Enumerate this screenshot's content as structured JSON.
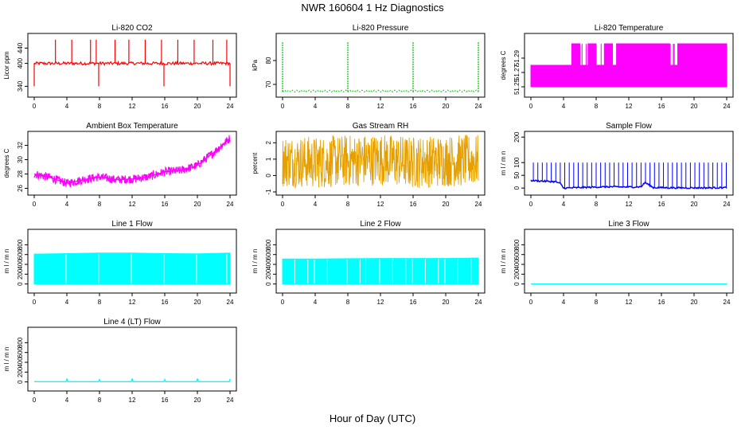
{
  "figure": {
    "title": "NWR  160604  1 Hz Diagnostics",
    "xlabel": "Hour of Day (UTC)"
  },
  "chart_data": [
    {
      "type": "line",
      "title": "Li-820 CO2",
      "ylabel": "Licor ppm",
      "color": "#ff0000",
      "xlim": [
        0,
        24
      ],
      "ylim": [
        320,
        470
      ],
      "xticks": [
        "0",
        "4",
        "8",
        "12",
        "16",
        "20",
        "24"
      ],
      "yticks": [
        {
          "v": 340,
          "label": "340"
        },
        {
          "v": 400,
          "label": "400"
        },
        {
          "v": 440,
          "label": "440"
        }
      ],
      "baseline": 400,
      "series": {
        "x": [
          0,
          0.3,
          1.6,
          2.6,
          3.9,
          4.6,
          5.6,
          6.9,
          7.6,
          7.9,
          8.6,
          9.9,
          10.6,
          11.6,
          12.9,
          13.6,
          14.6,
          15.6,
          15.9,
          16.6,
          17.6,
          18.9,
          19.6,
          20.6,
          21.9,
          22.6,
          23.6,
          24
        ],
        "y": [
          340,
          398,
          400,
          462,
          401,
          462,
          400,
          462,
          462,
          340,
          400,
          462,
          401,
          462,
          401,
          462,
          400,
          462,
          340,
          400,
          462,
          400,
          462,
          400,
          462,
          400,
          462,
          340
        ]
      }
    },
    {
      "type": "line",
      "title": "Li-820 Pressure",
      "ylabel": "kPa",
      "color": "#00cc00",
      "xlim": [
        0,
        24
      ],
      "ylim": [
        66,
        90
      ],
      "xticks": [
        "0",
        "4",
        "8",
        "12",
        "16",
        "20",
        "24"
      ],
      "yticks": [
        {
          "v": 70,
          "label": "70"
        },
        {
          "v": 80,
          "label": "80"
        }
      ],
      "baseline": 67,
      "series": {
        "x": [
          0,
          8,
          16,
          24
        ],
        "y": [
          88,
          88,
          88,
          88
        ]
      }
    },
    {
      "type": "line",
      "title": "Li-820 Temperature",
      "ylabel": "degrees C",
      "color": "#ff00ff",
      "xlim": [
        0,
        24
      ],
      "ylim": [
        51.24,
        51.32
      ],
      "xticks": [
        "0",
        "4",
        "8",
        "12",
        "16",
        "20",
        "24"
      ],
      "yticks": [
        {
          "v": 51.25,
          "label": "51.25"
        },
        {
          "v": 51.27,
          "label": "51.27"
        },
        {
          "v": 51.29,
          "label": "51.29"
        }
      ],
      "series": {
        "x": [
          0,
          4.5,
          5,
          6,
          7,
          8,
          9,
          10,
          10.5,
          16,
          17,
          18,
          24
        ],
        "y": [
          51.28,
          51.28,
          51.31,
          51.28,
          51.31,
          51.28,
          51.31,
          51.28,
          51.31,
          51.31,
          51.28,
          51.31,
          51.31
        ]
      }
    },
    {
      "type": "line",
      "title": "Ambient Box Temperature",
      "ylabel": "degrees C",
      "color": "#ff00ff",
      "xlim": [
        0,
        24
      ],
      "ylim": [
        25.5,
        33.5
      ],
      "xticks": [
        "0",
        "4",
        "8",
        "12",
        "16",
        "20",
        "24"
      ],
      "yticks": [
        {
          "v": 26,
          "label": "26"
        },
        {
          "v": 28,
          "label": "28"
        },
        {
          "v": 30,
          "label": "30"
        },
        {
          "v": 32,
          "label": "32"
        }
      ],
      "series": {
        "x": [
          0,
          2,
          4,
          6,
          8,
          10,
          12,
          14,
          16,
          18,
          20,
          22,
          24
        ],
        "y": [
          28,
          27.5,
          26.7,
          27.2,
          27.6,
          27.2,
          27.3,
          27.6,
          28.3,
          28.5,
          29.2,
          31,
          33
        ]
      }
    },
    {
      "type": "line",
      "title": "Gas Stream RH",
      "ylabel": "percent",
      "color": "#e5a000",
      "xlim": [
        0,
        24
      ],
      "ylim": [
        -1,
        2.5
      ],
      "xticks": [
        "0",
        "4",
        "8",
        "12",
        "16",
        "20",
        "24"
      ],
      "yticks": [
        {
          "v": -1,
          "label": "-1"
        },
        {
          "v": 0,
          "label": "0"
        },
        {
          "v": 1,
          "label": "1"
        },
        {
          "v": 2,
          "label": "2"
        }
      ],
      "series": {
        "x": [
          0,
          4,
          8,
          12,
          16,
          20,
          24
        ],
        "y": [
          0.9,
          0.8,
          0.9,
          1.0,
          0.8,
          0.9,
          0.9
        ]
      }
    },
    {
      "type": "line",
      "title": "Sample Flow",
      "ylabel": "m l / m n",
      "color": "#0000ff",
      "xlim": [
        0,
        24
      ],
      "ylim": [
        -15,
        210
      ],
      "xticks": [
        "0",
        "4",
        "8",
        "12",
        "16",
        "20",
        "24"
      ],
      "yticks": [
        {
          "v": 0,
          "label": "0"
        },
        {
          "v": 50,
          "label": "50"
        },
        {
          "v": 100,
          "label": "100"
        },
        {
          "v": 200,
          "label": "200"
        }
      ],
      "series": {
        "x": [
          0,
          1,
          3,
          3.6,
          4,
          6,
          8,
          10,
          12,
          13.5,
          14,
          15,
          18,
          22,
          24
        ],
        "y": [
          30,
          28,
          25,
          18,
          0,
          2,
          4,
          5,
          4,
          5,
          22,
          2,
          1,
          1,
          2
        ]
      }
    },
    {
      "type": "line",
      "title": "Line 1 Flow",
      "ylabel": "m l / m n",
      "color": "#00ffff",
      "xlim": [
        0,
        24
      ],
      "ylim": [
        -120,
        1050
      ],
      "xticks": [
        "0",
        "4",
        "8",
        "12",
        "16",
        "20",
        "24"
      ],
      "yticks": [
        {
          "v": 0,
          "label": "0"
        },
        {
          "v": 200,
          "label": "200"
        },
        {
          "v": 400,
          "label": "400"
        },
        {
          "v": 600,
          "label": "600"
        },
        {
          "v": 800,
          "label": "800"
        }
      ],
      "series": {
        "x": [
          0,
          4,
          8,
          12,
          16,
          20,
          24
        ],
        "y": [
          610,
          620,
          630,
          630,
          620,
          615,
          630
        ]
      }
    },
    {
      "type": "line",
      "title": "Line 2 Flow",
      "ylabel": "m l / m n",
      "color": "#00ffff",
      "xlim": [
        0,
        24
      ],
      "ylim": [
        -120,
        1050
      ],
      "xticks": [
        "0",
        "4",
        "8",
        "12",
        "16",
        "20",
        "24"
      ],
      "yticks": [
        {
          "v": 0,
          "label": "0"
        },
        {
          "v": 200,
          "label": "200"
        },
        {
          "v": 400,
          "label": "400"
        },
        {
          "v": 600,
          "label": "600"
        },
        {
          "v": 800,
          "label": "800"
        }
      ],
      "series": {
        "x": [
          0,
          4,
          8,
          12,
          16,
          20,
          24
        ],
        "y": [
          510,
          510,
          515,
          520,
          520,
          520,
          530
        ]
      }
    },
    {
      "type": "line",
      "title": "Line 3 Flow",
      "ylabel": "m l / m n",
      "color": "#00ffff",
      "xlim": [
        0,
        24
      ],
      "ylim": [
        -120,
        1050
      ],
      "xticks": [
        "0",
        "4",
        "8",
        "12",
        "16",
        "20",
        "24"
      ],
      "yticks": [
        {
          "v": 0,
          "label": "0"
        },
        {
          "v": 200,
          "label": "200"
        },
        {
          "v": 400,
          "label": "400"
        },
        {
          "v": 600,
          "label": "600"
        },
        {
          "v": 800,
          "label": "800"
        }
      ],
      "series": {
        "x": [
          0,
          24
        ],
        "y": [
          0,
          0
        ]
      }
    },
    {
      "type": "line",
      "title": "Line 4 (LT) Flow",
      "ylabel": "m l / m n",
      "color": "#00ffff",
      "xlim": [
        0,
        24
      ],
      "ylim": [
        -120,
        1050
      ],
      "xticks": [
        "0",
        "4",
        "8",
        "12",
        "16",
        "20",
        "24"
      ],
      "yticks": [
        {
          "v": 0,
          "label": "0"
        },
        {
          "v": 200,
          "label": "200"
        },
        {
          "v": 400,
          "label": "400"
        },
        {
          "v": 600,
          "label": "600"
        },
        {
          "v": 800,
          "label": "800"
        }
      ],
      "series": {
        "x": [
          0,
          3.9,
          4,
          4.1,
          7.9,
          8,
          8.1,
          11.9,
          12,
          12.1,
          15.9,
          16,
          16.1,
          19.9,
          20,
          20.1,
          23.9,
          24
        ],
        "y": [
          5,
          5,
          70,
          5,
          5,
          50,
          5,
          5,
          70,
          5,
          5,
          50,
          5,
          5,
          70,
          5,
          5,
          60
        ]
      }
    }
  ]
}
